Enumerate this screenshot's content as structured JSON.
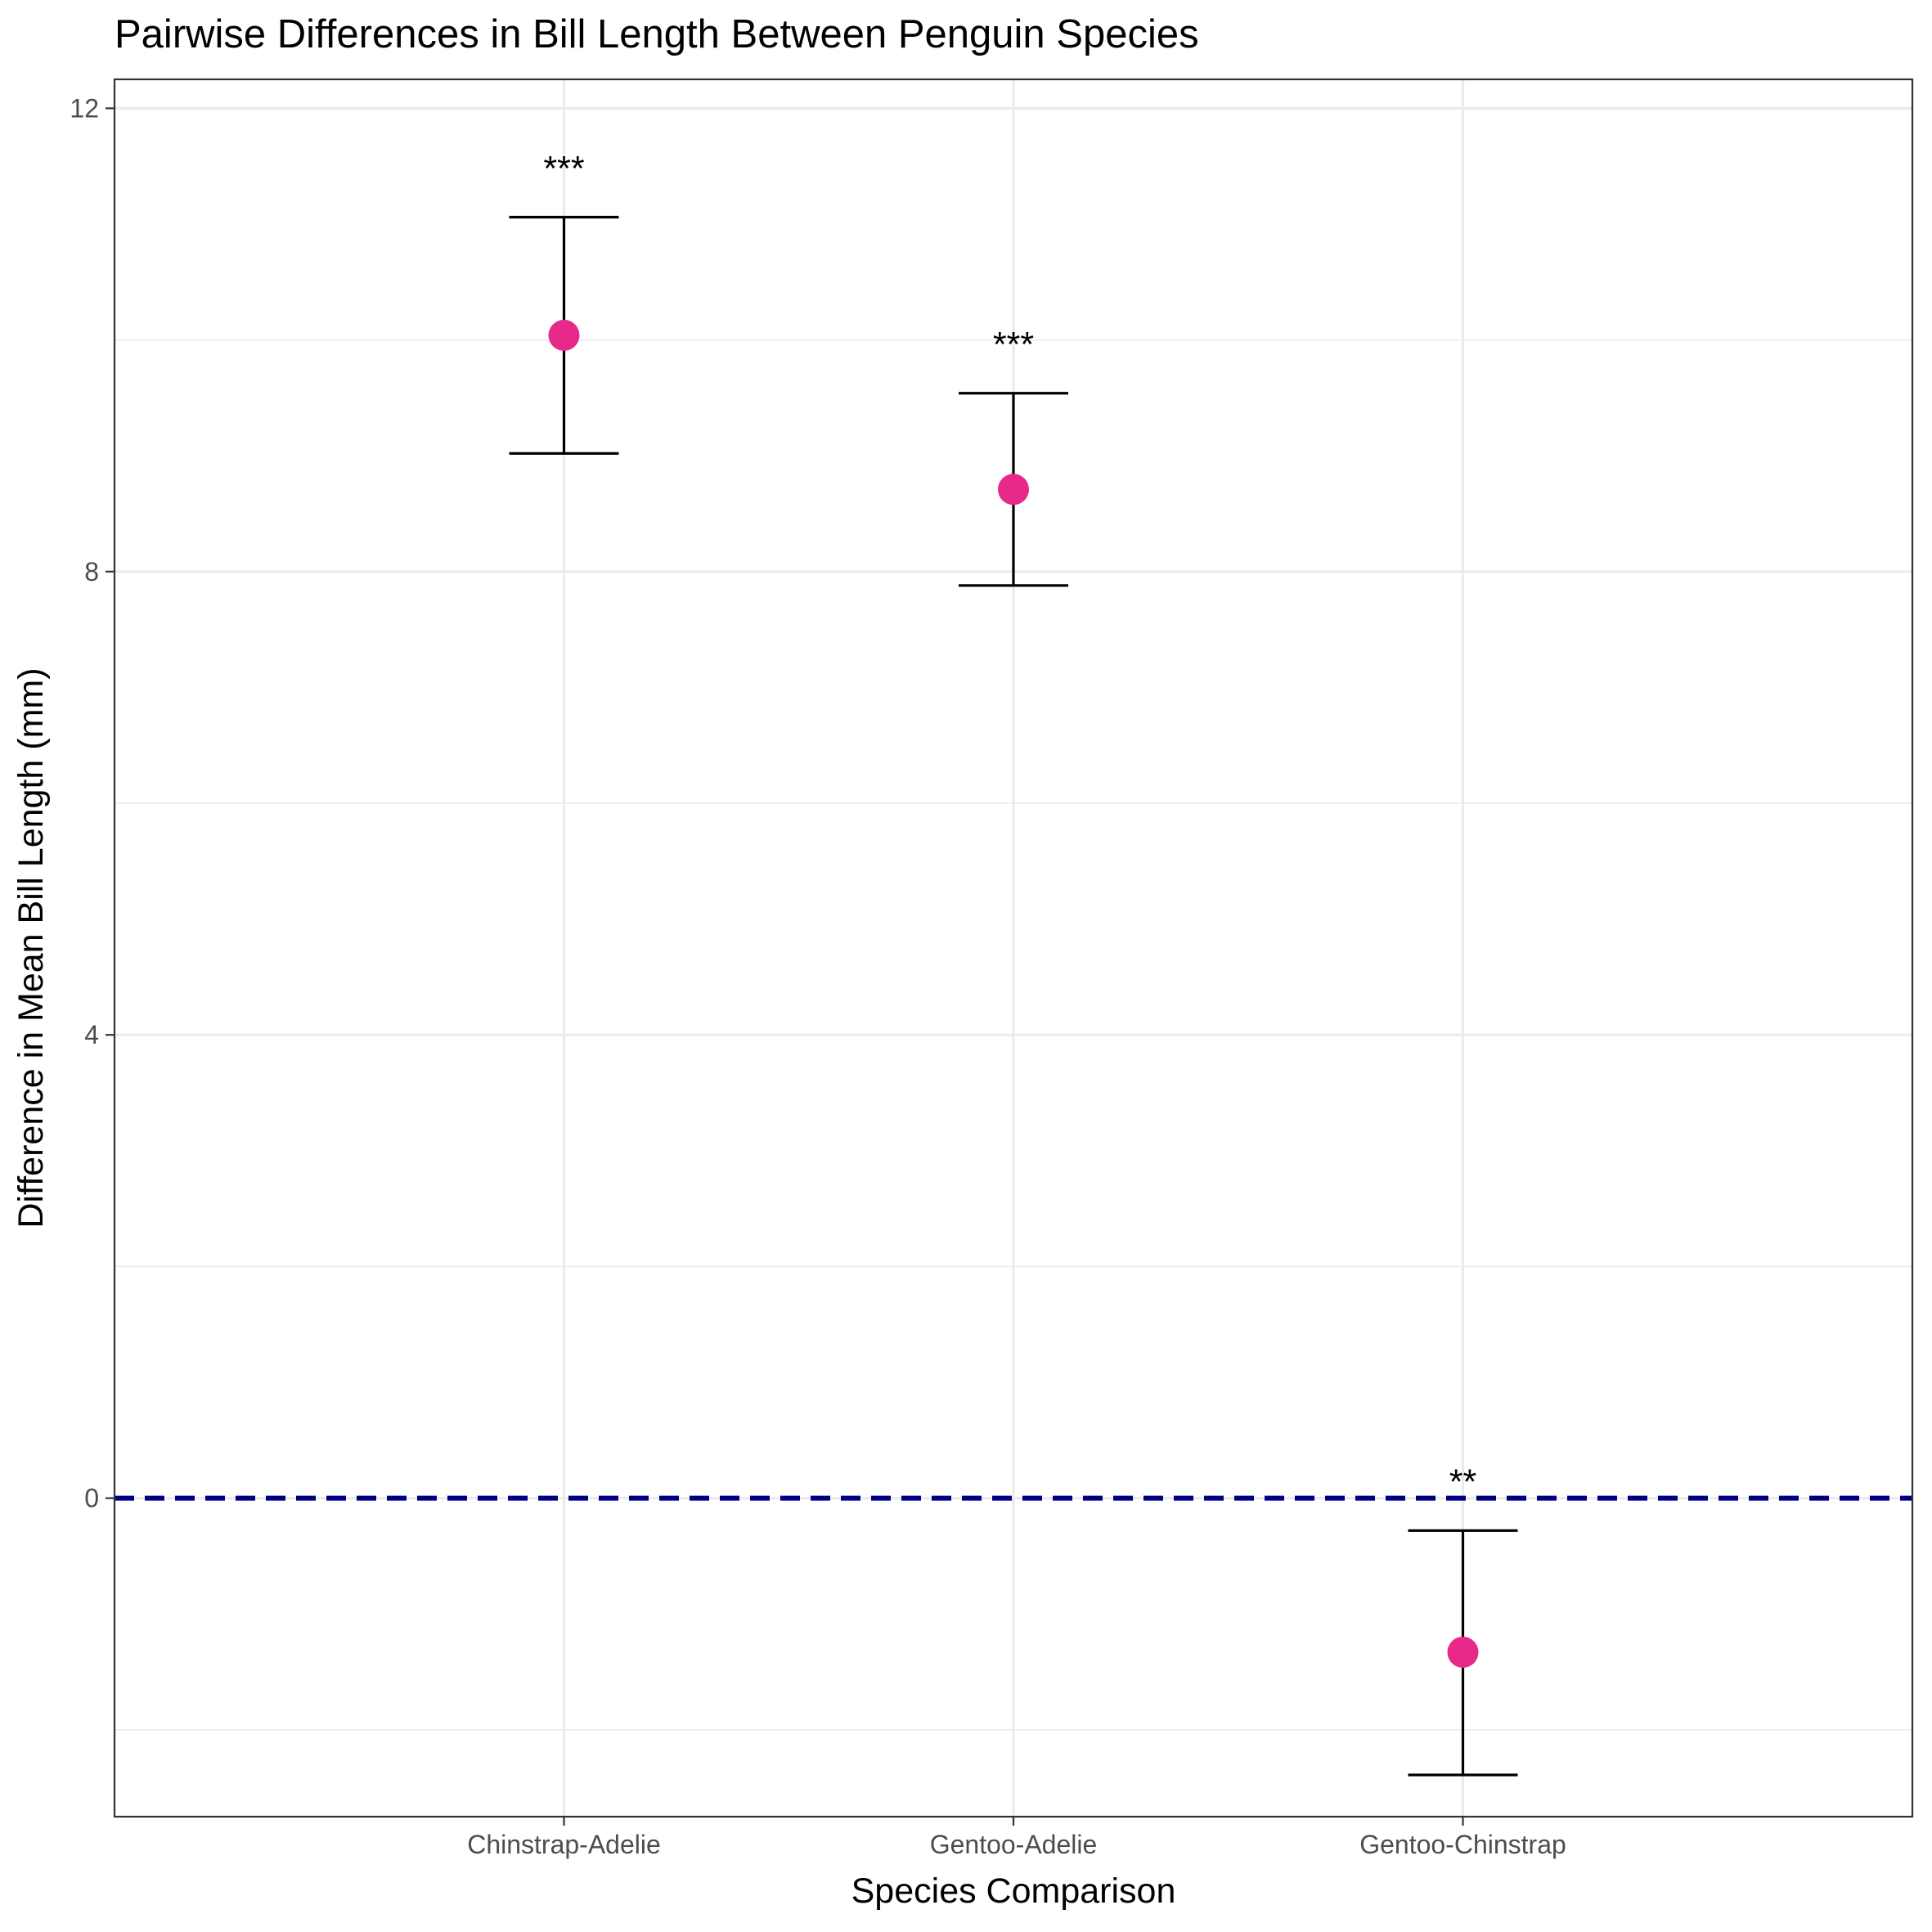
{
  "chart_data": {
    "type": "scatter",
    "title": "Pairwise Differences in Bill Length Between Penguin Species",
    "xlabel": "Species Comparison",
    "ylabel": "Difference in Mean Bill Length (mm)",
    "categories": [
      "Chinstrap-Adelie",
      "Gentoo-Adelie",
      "Gentoo-Chinstrap"
    ],
    "estimates": [
      10.04,
      8.71,
      -1.33
    ],
    "ci_lower": [
      9.02,
      7.88,
      -2.39
    ],
    "ci_upper": [
      11.06,
      9.54,
      -0.28
    ],
    "significance": [
      "***",
      "***",
      "**"
    ],
    "ylim": [
      -2.75,
      12.25
    ],
    "yticks": [
      0,
      4,
      8,
      12
    ],
    "reference_line": {
      "y": 0,
      "style": "dashed",
      "color": "#000080"
    },
    "point_color": "#e7298a",
    "grid": true,
    "legend": "none"
  }
}
